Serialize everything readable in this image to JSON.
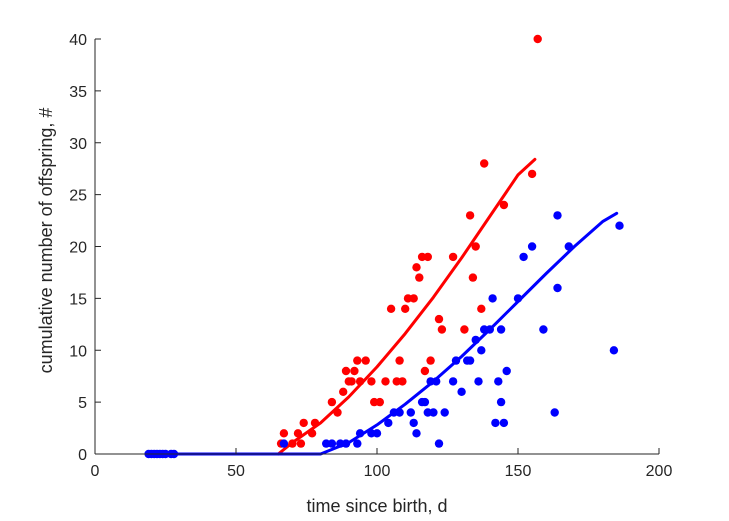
{
  "chart_data": {
    "type": "scatter",
    "xlabel": "time since birth, d",
    "ylabel": "cumulative number of offspring, #",
    "xlim": [
      0,
      200
    ],
    "ylim": [
      0,
      40
    ],
    "xticks": [
      0,
      50,
      100,
      150,
      200
    ],
    "yticks": [
      0,
      5,
      10,
      15,
      20,
      25,
      30,
      35,
      40
    ],
    "grid": false,
    "series": [
      {
        "color": "#ff0000",
        "points": [
          [
            66,
            1
          ],
          [
            67,
            2
          ],
          [
            70,
            1
          ],
          [
            72,
            2
          ],
          [
            73,
            1
          ],
          [
            74,
            3
          ],
          [
            77,
            2
          ],
          [
            78,
            3
          ],
          [
            84,
            5
          ],
          [
            86,
            4
          ],
          [
            88,
            6
          ],
          [
            89,
            8
          ],
          [
            90,
            7
          ],
          [
            91,
            7
          ],
          [
            92,
            8
          ],
          [
            93,
            9
          ],
          [
            94,
            7
          ],
          [
            96,
            9
          ],
          [
            98,
            7
          ],
          [
            99,
            5
          ],
          [
            101,
            5
          ],
          [
            103,
            7
          ],
          [
            105,
            14
          ],
          [
            107,
            7
          ],
          [
            108,
            9
          ],
          [
            109,
            7
          ],
          [
            110,
            14
          ],
          [
            111,
            15
          ],
          [
            113,
            15
          ],
          [
            114,
            18
          ],
          [
            115,
            17
          ],
          [
            116,
            19
          ],
          [
            117,
            8
          ],
          [
            118,
            19
          ],
          [
            119,
            9
          ],
          [
            122,
            13
          ],
          [
            123,
            12
          ],
          [
            127,
            19
          ],
          [
            131,
            12
          ],
          [
            133,
            23
          ],
          [
            134,
            17
          ],
          [
            135,
            20
          ],
          [
            137,
            14
          ],
          [
            138,
            28
          ],
          [
            145,
            24
          ],
          [
            155,
            27
          ],
          [
            157,
            40
          ]
        ],
        "fit": [
          [
            65,
            0
          ],
          [
            70,
            1.1
          ],
          [
            80,
            3.0
          ],
          [
            90,
            5.5
          ],
          [
            100,
            8.4
          ],
          [
            110,
            11.6
          ],
          [
            120,
            15.1
          ],
          [
            130,
            18.9
          ],
          [
            140,
            22.9
          ],
          [
            150,
            26.9
          ],
          [
            156,
            28.4
          ]
        ]
      },
      {
        "color": "#0000ff",
        "points": [
          [
            19,
            0
          ],
          [
            20,
            0
          ],
          [
            21,
            0
          ],
          [
            22,
            0
          ],
          [
            23,
            0
          ],
          [
            24,
            0
          ],
          [
            25,
            0
          ],
          [
            27,
            0
          ],
          [
            28,
            0
          ],
          [
            67,
            1
          ],
          [
            82,
            1
          ],
          [
            84,
            1
          ],
          [
            87,
            1
          ],
          [
            89,
            1
          ],
          [
            93,
            1
          ],
          [
            94,
            2
          ],
          [
            98,
            2
          ],
          [
            100,
            2
          ],
          [
            104,
            3
          ],
          [
            106,
            4
          ],
          [
            108,
            4
          ],
          [
            112,
            4
          ],
          [
            113,
            3
          ],
          [
            114,
            2
          ],
          [
            116,
            5
          ],
          [
            117,
            5
          ],
          [
            118,
            4
          ],
          [
            119,
            7
          ],
          [
            120,
            4
          ],
          [
            121,
            7
          ],
          [
            122,
            1
          ],
          [
            124,
            4
          ],
          [
            127,
            7
          ],
          [
            128,
            9
          ],
          [
            130,
            6
          ],
          [
            132,
            9
          ],
          [
            133,
            9
          ],
          [
            135,
            11
          ],
          [
            136,
            7
          ],
          [
            137,
            10
          ],
          [
            138,
            12
          ],
          [
            140,
            12
          ],
          [
            141,
            15
          ],
          [
            142,
            3
          ],
          [
            143,
            7
          ],
          [
            144,
            5
          ],
          [
            144,
            12
          ],
          [
            145,
            3
          ],
          [
            146,
            8
          ],
          [
            150,
            15
          ],
          [
            152,
            19
          ],
          [
            155,
            20
          ],
          [
            159,
            12
          ],
          [
            163,
            4
          ],
          [
            164,
            16
          ],
          [
            164,
            23
          ],
          [
            168,
            20
          ],
          [
            184,
            10
          ],
          [
            186,
            22
          ]
        ],
        "fit": [
          [
            19,
            0
          ],
          [
            80,
            0
          ],
          [
            90,
            1.1
          ],
          [
            100,
            2.8
          ],
          [
            110,
            4.8
          ],
          [
            120,
            7.0
          ],
          [
            130,
            9.4
          ],
          [
            140,
            12.0
          ],
          [
            150,
            14.7
          ],
          [
            160,
            17.4
          ],
          [
            170,
            20.0
          ],
          [
            180,
            22.4
          ],
          [
            185,
            23.2
          ]
        ]
      }
    ]
  }
}
